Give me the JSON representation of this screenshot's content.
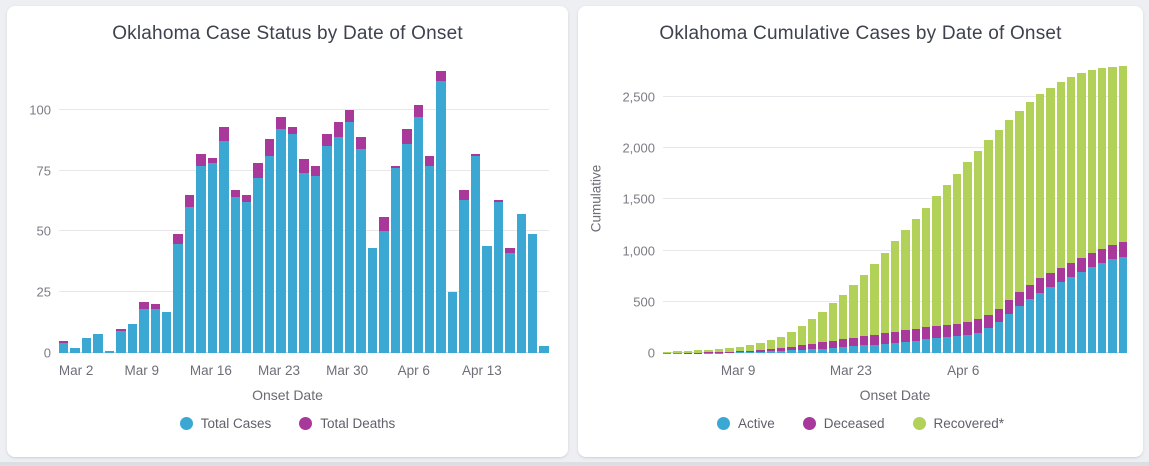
{
  "page": {
    "background_color": "#edeff2",
    "card_color": "#ffffff"
  },
  "colors": {
    "cases_blue": "#3BA7D3",
    "deaths_magenta": "#A8399B",
    "recovered_green": "#B2D159"
  },
  "chart_data": [
    {
      "type": "bar",
      "stacked": true,
      "title": "Oklahoma Case Status by Date of Onset",
      "xlabel": "Onset Date",
      "ylabel": "",
      "ylim": [
        0,
        120.5
      ],
      "yticks": [
        0,
        25,
        50,
        75,
        100
      ],
      "ytick_labels": [
        "0",
        "25",
        "50",
        "75",
        "100"
      ],
      "grid": true,
      "legend_position": "bottom",
      "x_axis_labels": [
        "Mar 2",
        "Mar 9",
        "Mar 16",
        "Mar 23",
        "Mar 30",
        "Apr 6",
        "Apr 13"
      ],
      "x_label_positions_pct": [
        3.5,
        16.9,
        31.0,
        44.9,
        58.8,
        72.4,
        86.3
      ],
      "series": [
        {
          "name": "Total Cases",
          "color": "#3BA7D3",
          "values": [
            4,
            2,
            6,
            8,
            1,
            9,
            12,
            18,
            18,
            17,
            45,
            60,
            77,
            78,
            87,
            64,
            62,
            72,
            81,
            92,
            90,
            74,
            73,
            85,
            89,
            95,
            84,
            43,
            50,
            76,
            86,
            97,
            77,
            112,
            25,
            63,
            81,
            44,
            62,
            41,
            57,
            49,
            3
          ]
        },
        {
          "name": "Total Deaths",
          "color": "#A8399B",
          "values": [
            1,
            0,
            0,
            0,
            0,
            1,
            0,
            3,
            2,
            0,
            4,
            5,
            5,
            2,
            6,
            3,
            3,
            6,
            7,
            5,
            3,
            6,
            4,
            5,
            6,
            5,
            5,
            0,
            6,
            1,
            6,
            5,
            4,
            4,
            0,
            4,
            1,
            0,
            1,
            2,
            0,
            0,
            0
          ]
        }
      ]
    },
    {
      "type": "bar",
      "stacked": true,
      "title": "Oklahoma Cumulative Cases by Date of Onset",
      "xlabel": "Onset Date",
      "ylabel": "Cumulative",
      "ylim": [
        0,
        2860
      ],
      "yticks": [
        0,
        500,
        1000,
        1500,
        2000,
        2500
      ],
      "ytick_labels": [
        "0",
        "500",
        "1,000",
        "1,500",
        "2,000",
        "2,500"
      ],
      "grid": true,
      "legend_position": "bottom",
      "x_axis_labels": [
        "Mar 9",
        "Mar 23",
        "Apr 6"
      ],
      "x_label_positions_pct": [
        16.2,
        40.5,
        64.7
      ],
      "series": [
        {
          "name": "Active",
          "color": "#3BA7D3",
          "values": [
            2,
            2,
            3,
            4,
            4,
            5,
            6,
            8,
            10,
            12,
            15,
            20,
            25,
            30,
            36,
            42,
            50,
            58,
            66,
            74,
            82,
            92,
            102,
            112,
            122,
            132,
            142,
            152,
            162,
            175,
            200,
            240,
            300,
            380,
            460,
            530,
            590,
            640,
            690,
            740,
            790,
            840,
            880,
            915,
            940
          ]
        },
        {
          "name": "Deceased",
          "color": "#A8399B",
          "values": [
            0,
            0,
            1,
            1,
            2,
            3,
            5,
            8,
            12,
            17,
            23,
            30,
            38,
            46,
            54,
            62,
            70,
            77,
            84,
            90,
            96,
            101,
            106,
            110,
            114,
            118,
            121,
            124,
            126,
            128,
            130,
            132,
            134,
            135,
            136,
            137,
            138,
            139,
            139,
            140,
            140,
            140,
            140,
            140,
            142
          ]
        },
        {
          "name": "Recovered*",
          "color": "#B2D159",
          "values": [
            10,
            13,
            16,
            21,
            24,
            30,
            37,
            46,
            58,
            71,
            87,
            110,
            142,
            184,
            240,
            301,
            365,
            435,
            510,
            596,
            692,
            787,
            882,
            978,
            1074,
            1170,
            1267,
            1364,
            1462,
            1557,
            1640,
            1708,
            1746,
            1760,
            1769,
            1783,
            1802,
            1811,
            1816,
            1810,
            1800,
            1780,
            1760,
            1740,
            1723
          ]
        }
      ]
    }
  ]
}
